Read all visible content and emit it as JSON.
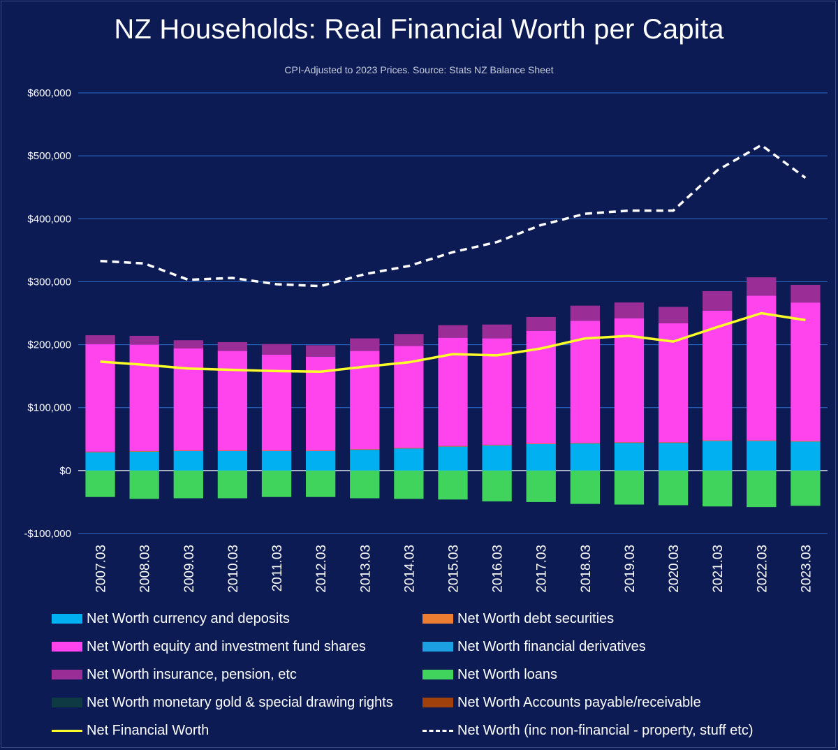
{
  "chart_data": {
    "type": "bar",
    "title": "NZ Households: Real Financial Worth per Capita",
    "subtitle": "CPI-Adjusted to 2023 Prices. Source: Stats NZ Balance Sheet",
    "categories": [
      "2007.03",
      "2008.03",
      "2009.03",
      "2010.03",
      "2011.03",
      "2012.03",
      "2013.03",
      "2014.03",
      "2015.03",
      "2016.03",
      "2017.03",
      "2018.03",
      "2019.03",
      "2020.03",
      "2021.03",
      "2022.03",
      "2023.03"
    ],
    "ylim": [
      -100000,
      600000
    ],
    "yticks": [
      -100000,
      0,
      100000,
      200000,
      300000,
      400000,
      500000,
      600000
    ],
    "ytick_labels": [
      "-$100,000",
      "$0",
      "$100,000",
      "$200,000",
      "$300,000",
      "$400,000",
      "$500,000",
      "$600,000"
    ],
    "grid": true,
    "legend_position": "bottom",
    "series": [
      {
        "name": "Net Worth currency and deposits",
        "kind": "bar",
        "color": "#00b0f0",
        "values": [
          29000,
          30000,
          31000,
          31000,
          31000,
          31000,
          33000,
          35000,
          38000,
          40000,
          42000,
          43000,
          44000,
          44000,
          47000,
          47000,
          46000
        ]
      },
      {
        "name": "Net Worth debt securities",
        "kind": "bar",
        "color": "#ed7d31",
        "values": [
          1000,
          1000,
          1000,
          1000,
          1000,
          1000,
          1000,
          1000,
          1000,
          1000,
          1000,
          1000,
          1000,
          1000,
          1000,
          1000,
          1000
        ]
      },
      {
        "name": "Net Worth equity and investment fund shares",
        "kind": "bar",
        "color": "#ff44ee",
        "values": [
          171000,
          169000,
          162000,
          158000,
          152000,
          149000,
          156000,
          162000,
          172000,
          169000,
          179000,
          194000,
          197000,
          189000,
          206000,
          230000,
          220000
        ]
      },
      {
        "name": "Net Worth financial derivatives",
        "kind": "bar",
        "color": "#1ba1e2",
        "values": [
          0,
          0,
          0,
          0,
          0,
          0,
          0,
          0,
          0,
          0,
          0,
          0,
          0,
          0,
          0,
          0,
          0
        ]
      },
      {
        "name": "Net Worth insurance, pension, etc",
        "kind": "bar",
        "color": "#9b2d96",
        "values": [
          14000,
          14000,
          13000,
          14000,
          17000,
          18000,
          20000,
          19000,
          20000,
          22000,
          22000,
          24000,
          25000,
          26000,
          31000,
          29000,
          28000
        ]
      },
      {
        "name": "Net Worth loans",
        "kind": "bar",
        "color": "#41d45c",
        "values": [
          -42000,
          -45000,
          -44000,
          -44000,
          -42000,
          -42000,
          -44000,
          -45000,
          -46000,
          -49000,
          -50000,
          -53000,
          -54000,
          -55000,
          -57000,
          -58000,
          -56000
        ]
      },
      {
        "name": "Net Worth monetary gold & special drawing rights",
        "kind": "bar",
        "color": "#0e3b43",
        "values": [
          0,
          0,
          0,
          0,
          0,
          0,
          0,
          0,
          0,
          0,
          0,
          0,
          0,
          0,
          0,
          0,
          0
        ]
      },
      {
        "name": "Net Worth Accounts payable/receivable",
        "kind": "bar",
        "color": "#a0400a",
        "values": [
          0,
          0,
          0,
          0,
          0,
          0,
          0,
          0,
          0,
          0,
          0,
          0,
          0,
          0,
          0,
          0,
          0
        ]
      },
      {
        "name": "Net Financial Worth",
        "kind": "line",
        "color": "#ffff2a",
        "dash": false,
        "values": [
          173000,
          168000,
          162000,
          160000,
          158000,
          157000,
          165000,
          172000,
          185000,
          183000,
          194000,
          210000,
          214000,
          205000,
          228000,
          250000,
          239000
        ]
      },
      {
        "name": "Net Worth (inc non-financial - property, stuff etc)",
        "kind": "line",
        "color": "#ffffff",
        "dash": true,
        "values": [
          333000,
          329000,
          303000,
          306000,
          296000,
          293000,
          312000,
          325000,
          347000,
          363000,
          390000,
          408000,
          413000,
          413000,
          477000,
          517000,
          465000
        ]
      }
    ]
  }
}
